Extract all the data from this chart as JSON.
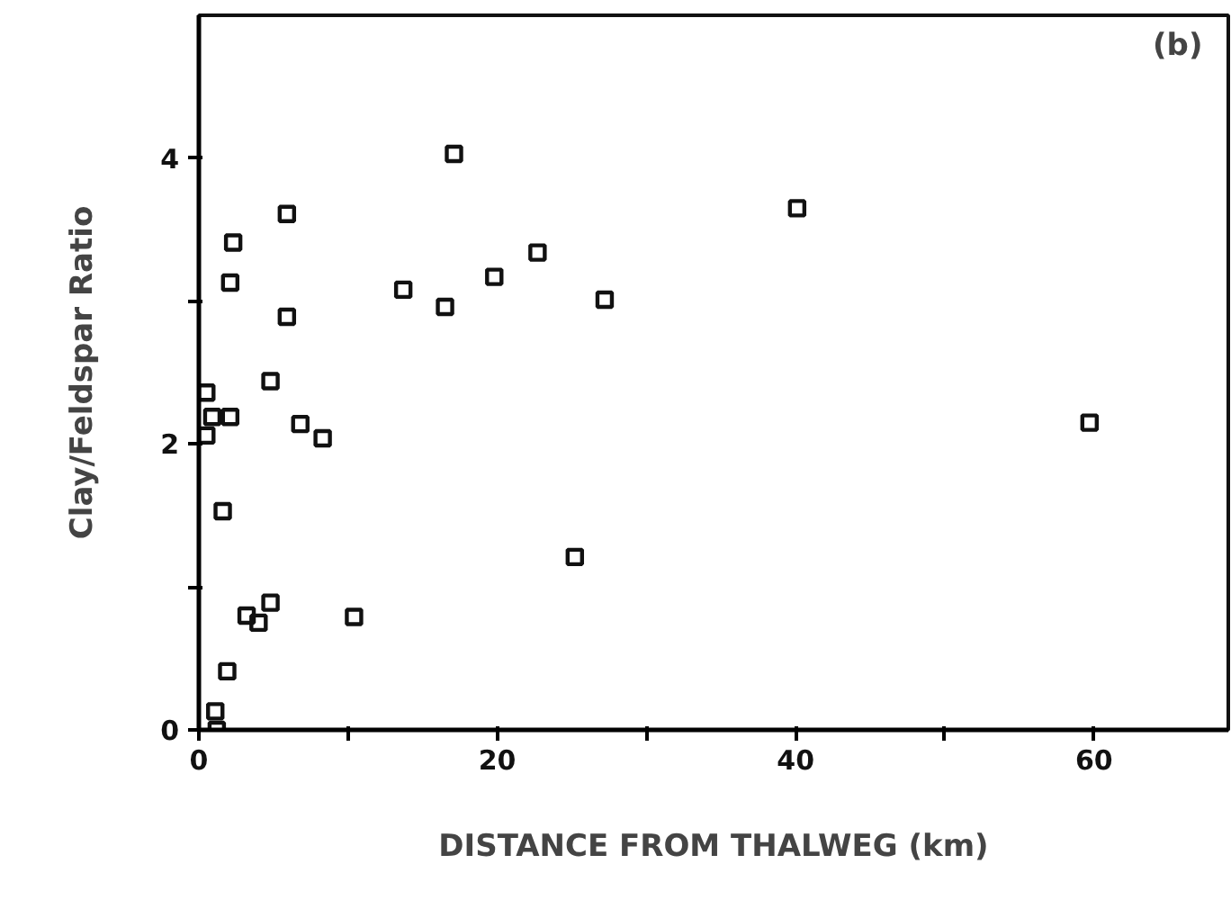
{
  "chart_data": {
    "type": "scatter",
    "xlabel": "DISTANCE FROM THALWEG (km)",
    "ylabel": "Clay/Feldspar Ratio",
    "annotations": [
      "(b)"
    ],
    "x": [
      0.5,
      0.9,
      0.5,
      2.1,
      2.3,
      2.1,
      5.9,
      5.9,
      4.8,
      6.8,
      8.3,
      1.6,
      3.2,
      4.0,
      4.8,
      10.4,
      1.9,
      1.1,
      1.2,
      13.7,
      16.5,
      17.1,
      19.8,
      22.7,
      25.2,
      27.2,
      40.1,
      59.7
    ],
    "series": [
      {
        "color": "#111111",
        "values": [
          2.36,
          2.19,
          2.06,
          2.19,
          3.41,
          3.13,
          3.61,
          2.89,
          2.44,
          2.14,
          2.04,
          1.53,
          0.8,
          0.75,
          0.89,
          0.79,
          0.41,
          0.13,
          0.0,
          3.08,
          2.96,
          4.03,
          3.17,
          3.34,
          1.21,
          3.01,
          3.65,
          2.15
        ]
      }
    ],
    "marker": "square",
    "xlim": [
      0,
      69
    ],
    "ylim": [
      0,
      5
    ],
    "xticks": [
      0,
      {
        "value": 10,
        "label": null
      },
      20,
      {
        "value": 30,
        "label": null
      },
      40,
      {
        "value": 50,
        "label": null
      },
      60
    ],
    "yticks": [
      0,
      {
        "value": 1,
        "label": null
      },
      2,
      {
        "value": 3,
        "label": null
      },
      4
    ],
    "grid": false
  }
}
